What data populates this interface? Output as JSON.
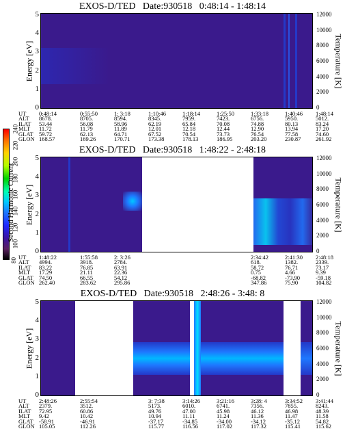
{
  "colorbar": {
    "label": "Second Harmonic Current",
    "ticks": [
      "240",
      "220",
      "200",
      "180",
      "160",
      "140",
      "120",
      "100",
      "80"
    ]
  },
  "panels": [
    {
      "title": "EXOS-D/TED   Date:930518   0:48:14 - 1:48:14",
      "ylabel": "Energy [eV]",
      "y2label": "Temperature [K]",
      "yticks": [
        "5",
        "4",
        "3",
        "2",
        "1",
        "0"
      ],
      "y2ticks": [
        "12000",
        "10000",
        "8000",
        "6000",
        "4000",
        "2000",
        "0"
      ],
      "table": {
        "rows": [
          {
            "label": "UT",
            "values": [
              "0:48:14",
              "0:55:50",
              "1: 3:18",
              "1:10:46",
              "1:18:14",
              "1:25:50",
              "1:33:18",
              "1:40:46",
              "1:48:14"
            ]
          },
          {
            "label": "ALT",
            "values": [
              "8678.",
              "8705.",
              "8594.",
              "8345.",
              "7959.",
              "7423.",
              "6756.",
              "5950.",
              "5012."
            ]
          },
          {
            "label": "ILAT",
            "values": [
              "53.44",
              "56.08",
              "58.96",
              "62.19",
              "65.84",
              "70.08",
              "74.88",
              "80.13",
              "83.24"
            ]
          },
          {
            "label": "MLT",
            "values": [
              "11.72",
              "11.79",
              "11.89",
              "12.01",
              "12.18",
              "12.44",
              "12.90",
              "13.94",
              "17.20"
            ]
          },
          {
            "label": "GLAT",
            "values": [
              "59.72",
              "62.13",
              "64.71",
              "67.52",
              "70.54",
              "73.73",
              "76.54",
              "77.58",
              "74.60"
            ]
          },
          {
            "label": "GLON",
            "values": [
              "168.57",
              "169.26",
              "170.71",
              "173.38",
              "178.13",
              "186.95",
              "203.20",
              "230.87",
              "261.92"
            ]
          }
        ]
      }
    },
    {
      "title": "EXOS-D/TED   Date:930518   1:48:22 - 2:48:18",
      "ylabel": "Energy [eV]",
      "y2label": "Temperature [K]",
      "yticks": [
        "5",
        "4",
        "3",
        "2",
        "1",
        "0"
      ],
      "y2ticks": [
        "12000",
        "10000",
        "8000",
        "6000",
        "4000",
        "2000",
        "0"
      ],
      "table": {
        "rows": [
          {
            "label": "UT",
            "values": [
              "1:48:22",
              "1:55:58",
              "2: 3:26",
              "",
              "",
              "",
              "2:34:42",
              "2:41:30",
              "2:48:18"
            ]
          },
          {
            "label": "ALT",
            "values": [
              "4994.",
              "3918.",
              "2784.",
              "",
              "",
              "",
              "618.",
              "1382.",
              "2339."
            ]
          },
          {
            "label": "ILAT",
            "values": [
              "83.22",
              "76.85",
              "63.91",
              "",
              "",
              "",
              "58.72",
              "76.71",
              "73.17"
            ]
          },
          {
            "label": "MLT",
            "values": [
              "17.29",
              "21.11",
              "22.36",
              "",
              "",
              "",
              "0.75",
              "4.66",
              "9.39"
            ]
          },
          {
            "label": "GLAT",
            "values": [
              "74.50",
              "66.55",
              "54.12",
              "",
              "",
              "",
              "-68.82",
              "-73.90",
              "-59.18"
            ]
          },
          {
            "label": "GLON",
            "values": [
              "262.40",
              "283.62",
              "295.86",
              "",
              "",
              "",
              "347.86",
              "75.90",
              "104.82"
            ]
          }
        ]
      }
    },
    {
      "title": "EXOS-D/TED   Date:930518   2:48:26 - 3:48: 8",
      "ylabel": "Energy [eV]",
      "y2label": "Temperature [K]",
      "yticks": [
        "5",
        "4",
        "3",
        "2",
        "1",
        "0"
      ],
      "y2ticks": [
        "12000",
        "10000",
        "8000",
        "6000",
        "4000",
        "2000",
        "0"
      ],
      "table": {
        "rows": [
          {
            "label": "UT",
            "values": [
              "2:48:26",
              "2:55:54",
              "",
              "3: 7:38",
              "3:14:26",
              "3:21:16",
              "3:28: 4",
              "3:34:52",
              "3:41:44"
            ]
          },
          {
            "label": "ALT",
            "values": [
              "2379.",
              "3512.",
              "",
              "5173.",
              "6010.",
              "6741.",
              "7356.",
              "7855.",
              "8243."
            ]
          },
          {
            "label": "ILAT",
            "values": [
              "72.95",
              "60.86",
              "",
              "49.76",
              "47.00",
              "45.98",
              "46.12",
              "46.98",
              "48.39"
            ]
          },
          {
            "label": "MLT",
            "values": [
              "9.42",
              "10.42",
              "",
              "10.94",
              "11.11",
              "11.24",
              "11.36",
              "11.47",
              "11.58"
            ]
          },
          {
            "label": "GLAT",
            "values": [
              "-58.91",
              "-46.91",
              "",
              "-37.17",
              "-34.85",
              "-34.00",
              "-34.12",
              "-35.12",
              "54.82"
            ]
          },
          {
            "label": "GLON",
            "values": [
              "105.05",
              "112.26",
              "",
              "115.77",
              "116.56",
              "117.02",
              "117.32",
              "115.41",
              "115.62"
            ]
          }
        ]
      }
    }
  ],
  "chart_data": {
    "type": "heatmap",
    "description_units": {
      "x": "UT time",
      "y": "Energy [eV]",
      "y2": "Temperature [K]",
      "z": "Second Harmonic Current"
    },
    "ylim": [
      0,
      5
    ],
    "y2lim": [
      0,
      12000
    ],
    "zlim": [
      80,
      240
    ],
    "panels": [
      {
        "title": "EXOS-D/TED   Date:930518   0:48:14 - 1:48:14",
        "x_range": [
          "0:48:14",
          "1:48:14"
        ]
      },
      {
        "title": "EXOS-D/TED   Date:930518   1:48:22 - 2:48:18",
        "x_range": [
          "1:48:22",
          "2:48:18"
        ]
      },
      {
        "title": "EXOS-D/TED   Date:930518   2:48:26 - 3:48: 8",
        "x_range": [
          "2:48:26",
          "3:48: 8"
        ]
      }
    ]
  }
}
